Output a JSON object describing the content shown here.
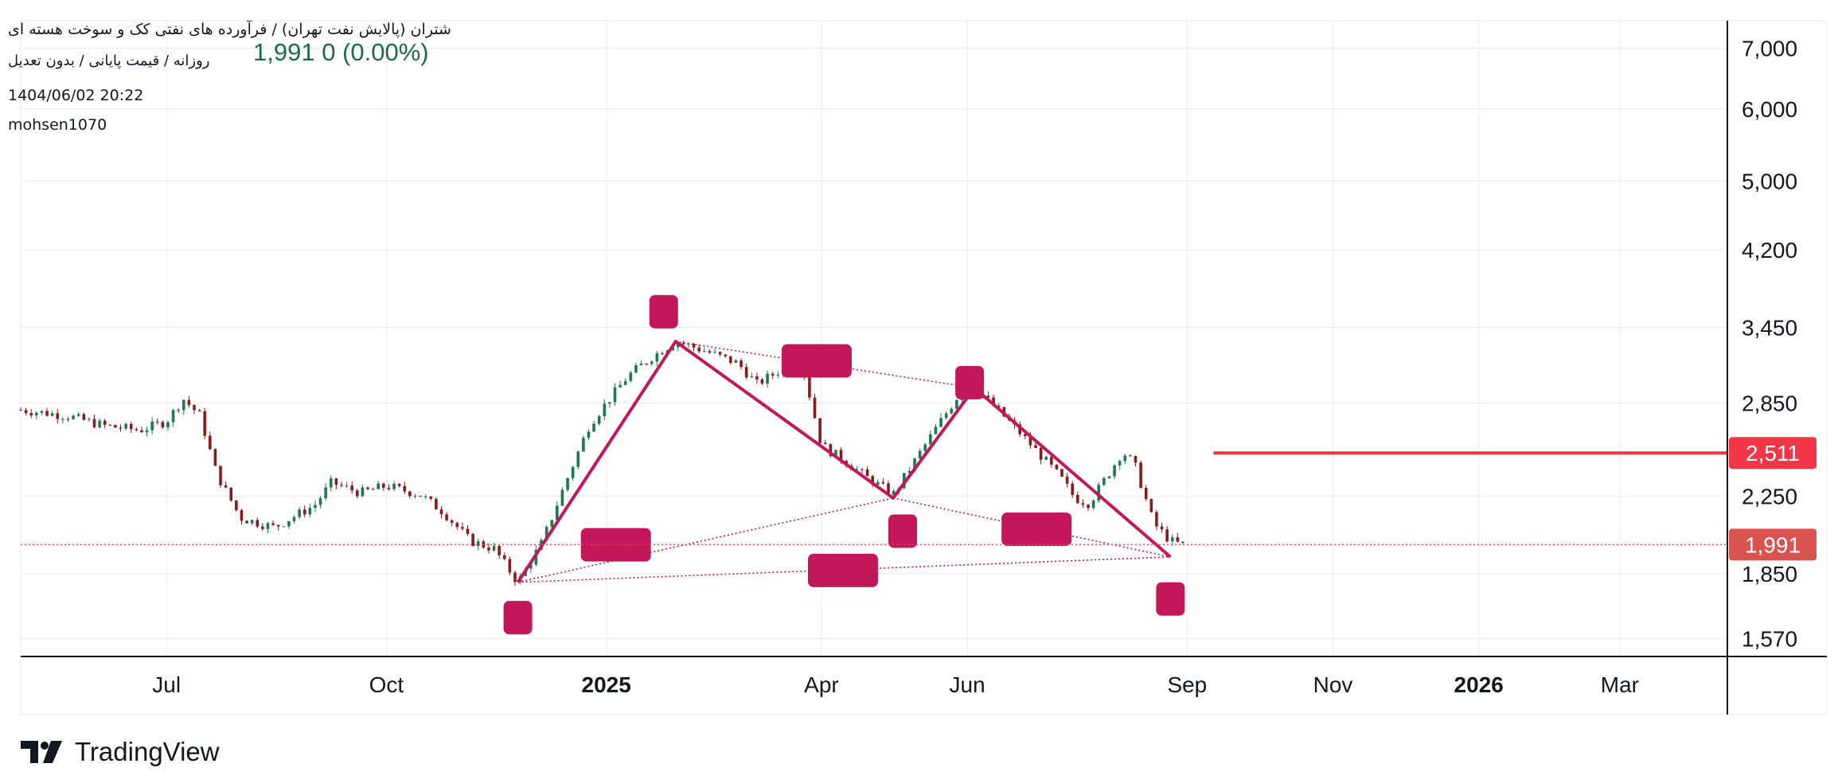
{
  "header": {
    "title": "شتران (پالایش نفت تهران) / فرآورده های نفتی کک و سوخت هسته ای",
    "subtitle": "روزانه / قیمت پایانی / بدون تعدیل",
    "datetime": "1404/06/02 20:22",
    "user": "mohsen1070",
    "price_readout": "1,991  0 (0.00%)"
  },
  "brand": {
    "name": "TradingView"
  },
  "colors": {
    "pattern_line": "#c2185b",
    "label_box": "#c2185b",
    "up_candle": "#1b7a4e",
    "down_candle": "#8b1a1a",
    "last_price_badge": "#d9534f",
    "alert_line": "#f23645",
    "grid": "#e6ecf2"
  },
  "chart_data": {
    "type": "candlestick",
    "symbol": "شتران",
    "interval": "روزانه",
    "y_scale": "log",
    "ylim": [
      1500,
      7500
    ],
    "y_ticks": [
      "7,000",
      "6,000",
      "5,000",
      "4,200",
      "3,450",
      "2,850",
      "2,250",
      "1,850",
      "1,570"
    ],
    "y_tick_values": [
      7000,
      6000,
      5000,
      4200,
      3450,
      2850,
      2250,
      1850,
      1570
    ],
    "x_range": [
      "2024-05-01",
      "2026-04-15"
    ],
    "x_ticks": [
      {
        "label": "Jul",
        "date": "2024-07-01",
        "bold": false
      },
      {
        "label": "Oct",
        "date": "2024-10-01",
        "bold": false
      },
      {
        "label": "2025",
        "date": "2025-01-01",
        "bold": true
      },
      {
        "label": "Apr",
        "date": "2025-04-01",
        "bold": false
      },
      {
        "label": "Jun",
        "date": "2025-06-01",
        "bold": false
      },
      {
        "label": "Sep",
        "date": "2025-09-01",
        "bold": false
      },
      {
        "label": "Nov",
        "date": "2025-11-01",
        "bold": false
      },
      {
        "label": "2026",
        "date": "2026-01-01",
        "bold": true
      },
      {
        "label": "Mar",
        "date": "2026-03-01",
        "bold": false
      }
    ],
    "price_path": [
      [
        "2024-05-01",
        2800
      ],
      [
        "2024-05-20",
        2760
      ],
      [
        "2024-06-05",
        2690
      ],
      [
        "2024-06-20",
        2660
      ],
      [
        "2024-07-01",
        2720
      ],
      [
        "2024-07-08",
        2880
      ],
      [
        "2024-07-15",
        2760
      ],
      [
        "2024-07-22",
        2380
      ],
      [
        "2024-08-01",
        2130
      ],
      [
        "2024-08-15",
        2080
      ],
      [
        "2024-09-01",
        2200
      ],
      [
        "2024-09-08",
        2330
      ],
      [
        "2024-09-20",
        2270
      ],
      [
        "2024-10-01",
        2310
      ],
      [
        "2024-10-15",
        2260
      ],
      [
        "2024-10-25",
        2160
      ],
      [
        "2024-11-05",
        2010
      ],
      [
        "2024-11-15",
        1970
      ],
      [
        "2024-11-25",
        1810
      ],
      [
        "2024-12-05",
        2000
      ],
      [
        "2024-12-15",
        2330
      ],
      [
        "2024-12-25",
        2700
      ],
      [
        "2025-01-01",
        2850
      ],
      [
        "2025-01-10",
        3050
      ],
      [
        "2025-01-20",
        3200
      ],
      [
        "2025-01-30",
        3330
      ],
      [
        "2025-02-10",
        3260
      ],
      [
        "2025-02-25",
        3150
      ],
      [
        "2025-03-05",
        2990
      ],
      [
        "2025-03-15",
        3100
      ],
      [
        "2025-03-23",
        3220
      ],
      [
        "2025-04-01",
        2560
      ],
      [
        "2025-04-10",
        2470
      ],
      [
        "2025-04-20",
        2360
      ],
      [
        "2025-05-01",
        2260
      ],
      [
        "2025-05-10",
        2460
      ],
      [
        "2025-05-20",
        2700
      ],
      [
        "2025-05-28",
        2900
      ],
      [
        "2025-06-04",
        2960
      ],
      [
        "2025-06-12",
        2830
      ],
      [
        "2025-06-22",
        2660
      ],
      [
        "2025-07-02",
        2490
      ],
      [
        "2025-07-10",
        2360
      ],
      [
        "2025-07-16",
        2240
      ],
      [
        "2025-07-22",
        2210
      ],
      [
        "2025-07-30",
        2380
      ],
      [
        "2025-08-05",
        2520
      ],
      [
        "2025-08-10",
        2440
      ],
      [
        "2025-08-18",
        2100
      ],
      [
        "2025-08-25",
        2010
      ],
      [
        "2025-09-01",
        1980
      ]
    ],
    "zigzag": [
      [
        "2024-11-25",
        1810
      ],
      [
        "2025-01-30",
        3330
      ],
      [
        "2025-05-01",
        2240
      ],
      [
        "2025-06-04",
        2960
      ],
      [
        "2025-08-25",
        1930
      ]
    ],
    "dotted_lines": [
      [
        [
          "2025-01-30",
          3330
        ],
        [
          "2025-06-04",
          2960
        ]
      ],
      [
        [
          "2024-11-25",
          1810
        ],
        [
          "2025-05-01",
          2240
        ]
      ],
      [
        [
          "2025-05-01",
          2240
        ],
        [
          "2025-08-25",
          1930
        ]
      ],
      [
        [
          "2024-11-25",
          1810
        ],
        [
          "2025-08-25",
          1930
        ]
      ]
    ],
    "label_boxes": [
      {
        "date": "2024-11-25",
        "price": 1655,
        "w": 36
      },
      {
        "date": "2025-01-25",
        "price": 3590,
        "w": 36
      },
      {
        "date": "2025-03-30",
        "price": 3170,
        "w": 88
      },
      {
        "date": "2025-05-05",
        "price": 2060,
        "w": 36
      },
      {
        "date": "2025-06-02",
        "price": 3000,
        "w": 36
      },
      {
        "date": "2025-06-30",
        "price": 2070,
        "w": 88
      },
      {
        "date": "2025-01-05",
        "price": 1990,
        "w": 88
      },
      {
        "date": "2025-04-10",
        "price": 1865,
        "w": 88
      },
      {
        "date": "2025-08-25",
        "price": 1735,
        "w": 36
      }
    ],
    "horizontal_ray": {
      "price": 2511,
      "label": "2,511",
      "from": "2025-09-12"
    },
    "last_price": {
      "price": 1991,
      "label": "1,991"
    },
    "grid": true
  }
}
